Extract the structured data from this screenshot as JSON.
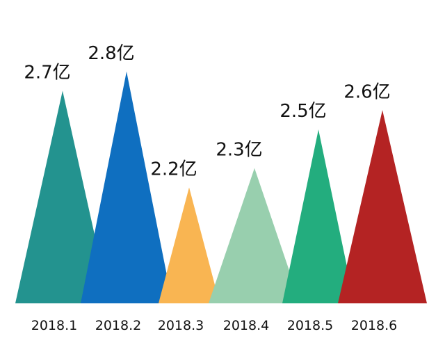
{
  "chart_data": {
    "type": "bar",
    "title": "",
    "xlabel": "",
    "ylabel": "",
    "categories": [
      "2018.1",
      "2018.2",
      "2018.3",
      "2018.4",
      "2018.5",
      "2018.6"
    ],
    "values": [
      2.7,
      2.8,
      2.2,
      2.3,
      2.5,
      2.6
    ],
    "data_labels": [
      "2.7亿",
      "2.8亿",
      "2.2亿",
      "2.3亿",
      "2.5亿",
      "2.6亿"
    ],
    "colors": [
      "#23938f",
      "#0f6fc0",
      "#f9b552",
      "#98cfae",
      "#23ad7e",
      "#b42323"
    ],
    "ylim": [
      1.6,
      2.9
    ],
    "grid": false,
    "legend": "none"
  }
}
